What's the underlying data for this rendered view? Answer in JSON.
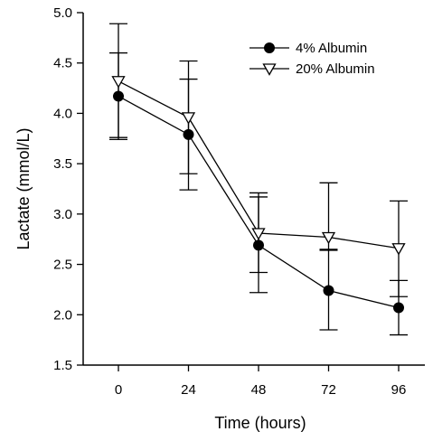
{
  "chart_data": {
    "type": "line",
    "title": "",
    "xlabel": "Time (hours)",
    "ylabel": "Lactate (mmol/L)",
    "x": [
      0,
      24,
      48,
      72,
      96
    ],
    "xticks": [
      "0",
      "24",
      "48",
      "72",
      "96"
    ],
    "ylim": [
      1.5,
      5.0
    ],
    "yticks": [
      "1.5",
      "2.0",
      "2.5",
      "3.0",
      "3.5",
      "4.0",
      "4.5",
      "5.0"
    ],
    "grid": false,
    "legend_position": "top-right",
    "series": [
      {
        "name": "4% Albumin",
        "marker": "filled-circle",
        "color": "#000000",
        "values": [
          4.17,
          3.79,
          2.69,
          2.24,
          2.07
        ],
        "error_upper": [
          4.6,
          4.34,
          3.17,
          2.64,
          2.34
        ],
        "error_lower": [
          3.76,
          3.24,
          2.22,
          1.85,
          1.8
        ]
      },
      {
        "name": "20% Albumin",
        "marker": "open-down-triangle",
        "color": "#000000",
        "values": [
          4.32,
          3.96,
          2.81,
          2.77,
          2.66
        ],
        "error_upper": [
          4.89,
          4.52,
          3.21,
          3.31,
          3.13
        ],
        "error_lower": [
          3.74,
          3.4,
          2.42,
          2.65,
          2.18
        ]
      }
    ]
  }
}
